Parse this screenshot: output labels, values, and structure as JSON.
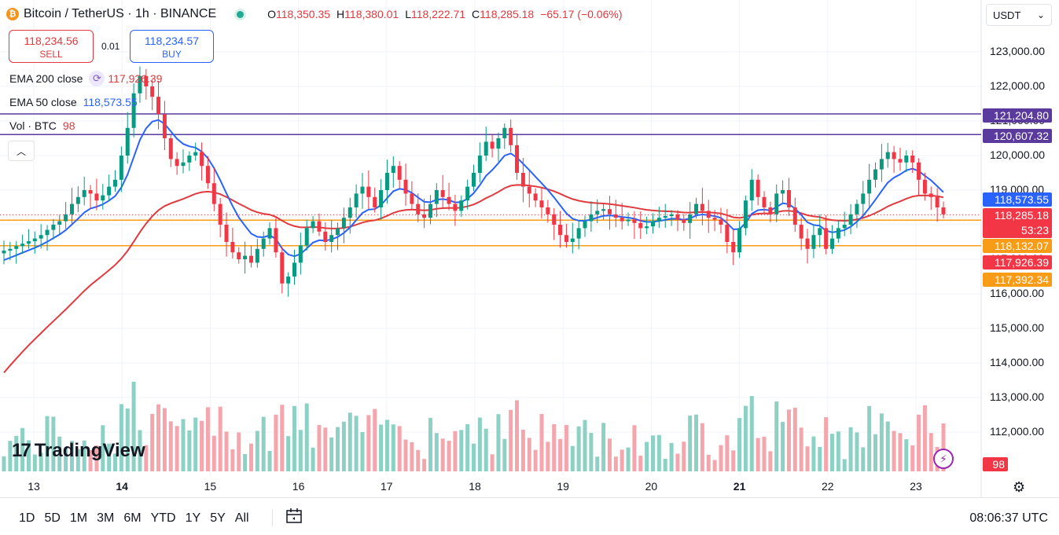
{
  "header": {
    "coin_glyph": "₿",
    "title": "Bitcoin / TetherUS · 1h · BINANCE",
    "ohlc": [
      {
        "k": "O",
        "v": "118,350.35"
      },
      {
        "k": "H",
        "v": "118,380.01"
      },
      {
        "k": "L",
        "v": "118,222.71"
      },
      {
        "k": "C",
        "v": "118,285.18"
      }
    ],
    "change": "−65.17 (−0.06%)"
  },
  "trade": {
    "sell_price": "118,234.56",
    "sell_label": "SELL",
    "spread": "0.01",
    "buy_price": "118,234.57",
    "buy_label": "BUY"
  },
  "indicators": [
    {
      "name": "EMA 200 close",
      "value": "117,926.39",
      "color": "#e03a3e"
    },
    {
      "name": "EMA 50 close",
      "value": "118,573.55",
      "color": "#2962ff"
    },
    {
      "name": "Vol · BTC",
      "value": "98",
      "color": "#e03a3e"
    }
  ],
  "currency_select": "USDT",
  "price_labels": [
    {
      "text": "121,204.80",
      "color": "#5b3a9e"
    },
    {
      "text": "120,607.32",
      "color": "#5b3a9e"
    },
    {
      "text": "118,573.55",
      "color": "#2962ff"
    },
    {
      "text": "118,285.18",
      "color": "#f23645"
    },
    {
      "text": "53:23",
      "color": "#f23645"
    },
    {
      "text": "118,132.07",
      "color": "#f89b17"
    },
    {
      "text": "117,926.39",
      "color": "#f23645"
    },
    {
      "text": "117,392.34",
      "color": "#f89b17"
    },
    {
      "text": "98",
      "color": "#f23645"
    }
  ],
  "brand": {
    "mark": "17",
    "name": "TradingView"
  },
  "toolbar": {
    "ranges": [
      "1D",
      "5D",
      "1M",
      "3M",
      "6M",
      "YTD",
      "1Y",
      "5Y",
      "All"
    ],
    "clock": "08:06:37 UTC"
  },
  "colors": {
    "up": "#089981",
    "down": "#f23645",
    "vol_up": "#8dd1c5",
    "vol_down": "#f5a6ad",
    "ema50": "#2962ff",
    "ema200": "#e03a3e",
    "resistance": "#5b3a9e",
    "support": "#f89b17"
  },
  "chart_data": {
    "type": "candlestick",
    "symbol": "Bitcoin / TetherUS",
    "interval": "1h",
    "exchange": "BINANCE",
    "y_axis": {
      "ticks": [
        112000,
        113000,
        114000,
        115000,
        116000,
        117000,
        118000,
        119000,
        120000,
        121000,
        122000,
        123000
      ],
      "tick_labels": [
        "112,000.00",
        "113,000.00",
        "114,000.00",
        "115,000.00",
        "116,000.00",
        "117,000.00",
        "118,000.00",
        "119,000.00",
        "120,000.00",
        "121,000.00",
        "122,000.00",
        "123,000.00"
      ]
    },
    "x_axis": {
      "labels": [
        "13",
        "14",
        "15",
        "16",
        "17",
        "18",
        "19",
        "20",
        "21",
        "22",
        "23"
      ],
      "bold": [
        "14",
        "21"
      ]
    },
    "horizontal_levels": [
      {
        "value": 121204.8,
        "color": "#5b3a9e"
      },
      {
        "value": 120607.32,
        "color": "#5b3a9e"
      },
      {
        "value": 118132.07,
        "color": "#f89b17"
      },
      {
        "value": 117392.34,
        "color": "#f89b17"
      }
    ],
    "last_price": 118285.18,
    "approx_hourly_close": [
      117250,
      117300,
      117380,
      117450,
      117520,
      117600,
      117700,
      117850,
      118000,
      118100,
      118300,
      118600,
      118800,
      119000,
      118900,
      118700,
      118850,
      119100,
      119300,
      120000,
      120800,
      121800,
      122300,
      122000,
      121700,
      121200,
      120500,
      119900,
      119700,
      119800,
      120000,
      120100,
      119700,
      119200,
      118600,
      118000,
      117500,
      117200,
      117000,
      117100,
      116900,
      117300,
      117600,
      117900,
      117200,
      116300,
      116500,
      116900,
      117400,
      117900,
      118100,
      117800,
      117500,
      117700,
      117900,
      118200,
      118500,
      118900,
      119100,
      118800,
      118500,
      119000,
      119500,
      119700,
      119300,
      118900,
      118600,
      118300,
      118200,
      118600,
      119000,
      118800,
      118600,
      118400,
      118700,
      119100,
      119500,
      120000,
      120400,
      120200,
      120500,
      120800,
      120300,
      119500,
      119100,
      118900,
      118700,
      118500,
      118300,
      118000,
      117700,
      117500,
      117600,
      117900,
      118100,
      118300,
      118400,
      118450,
      118300,
      118200,
      118100,
      118150,
      118050,
      117900,
      117950,
      118100,
      118200,
      118250,
      118300,
      118150,
      118050,
      118300,
      118600,
      118400,
      118200,
      118150,
      118000,
      117500,
      117200,
      117900,
      118700,
      119300,
      118800,
      118500,
      118300,
      118900,
      119000,
      118500,
      118000,
      117600,
      117300,
      117700,
      117900,
      117300,
      117600,
      117900,
      118000,
      118300,
      118600,
      118900,
      119300,
      119600,
      119900,
      120100,
      119900,
      119800,
      120000,
      119800,
      119300,
      118900,
      118800,
      118500,
      118300
    ]
  }
}
